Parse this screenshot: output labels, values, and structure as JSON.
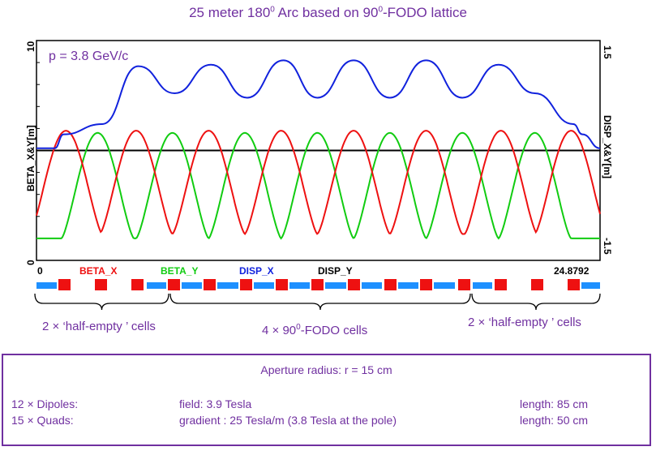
{
  "title_main": "25 meter 180",
  "title_sup": "0",
  "title_rest": " Arc based on 90",
  "title_sup2": "0",
  "title_end": "-FODO lattice",
  "chart_data": {
    "type": "line",
    "annotation": "p = 3.8 GeV/c",
    "ylabel_left": "BETA_X&Y[m]",
    "ylabel_right": "DISP_X&Y[m]",
    "left_ticks": [
      "0",
      "10"
    ],
    "right_ticks": [
      "-1.5",
      "1.5"
    ],
    "x_start_label": "0",
    "x_end_label": "24.8792",
    "xlim": [
      0,
      24.8792
    ],
    "ylim_left": [
      0,
      10
    ],
    "ylim_right": [
      -1.5,
      1.5
    ],
    "legend": [
      {
        "name": "BETA_X",
        "color": "#ee1111"
      },
      {
        "name": "BETA_Y",
        "color": "#11cc11"
      },
      {
        "name": "DISP_X",
        "color": "#1122dd"
      },
      {
        "name": "DISP_Y",
        "color": "#000000"
      }
    ],
    "series": [
      {
        "name": "BETA_X",
        "peaks_x": [
          1.3,
          4.4,
          7.6,
          10.8,
          14.0,
          17.2,
          20.5,
          23.6
        ],
        "peak": 5.9,
        "min": 1.2
      },
      {
        "name": "BETA_Y",
        "peaks_x": [
          2.7,
          6.0,
          9.2,
          12.4,
          15.6,
          18.8,
          22.0
        ],
        "peak": 5.8,
        "min": 1.0
      },
      {
        "name": "DISP_X",
        "x": [
          0,
          0.8,
          1.2,
          2.9,
          4.5,
          6.1,
          7.7,
          9.3,
          10.9,
          12.4,
          14.0,
          15.6,
          17.2,
          18.8,
          20.4,
          22.0,
          23.7,
          24.1,
          24.88
        ],
        "y": [
          0.03,
          0.03,
          0.22,
          0.36,
          1.15,
          0.78,
          1.17,
          0.72,
          1.23,
          0.72,
          1.23,
          0.72,
          1.23,
          0.72,
          1.17,
          0.78,
          0.36,
          0.22,
          0.03
        ]
      },
      {
        "name": "DISP_Y",
        "x": [
          0,
          24.88
        ],
        "y": [
          0,
          0
        ]
      }
    ]
  },
  "lattice": {
    "quad_color": "#1e90ff",
    "dipole_color": "#ee1111",
    "dipoles_label": "12 × Dipoles:",
    "quads_label": "15 × Quads:"
  },
  "cells": {
    "left_count": "2 ×",
    "left_text": " ‘half-empty ’ cells",
    "mid_count": "4 ×",
    "mid_num": "  90",
    "mid_sup": "0",
    "mid_text": "-FODO cells",
    "right_count": "2 ×",
    "right_text": " ‘half-empty ’ cells"
  },
  "info": {
    "aperture": "Aperture radius: r = 15 cm",
    "dipoles": "12 × Dipoles:",
    "dipole_field": "field: 3.9 Tesla",
    "dipole_length": "length: 85 cm",
    "quads": "15 × Quads:",
    "quad_gradient": "gradient : 25 Tesla/m (3.8 Tesla at the pole)",
    "quad_length": "length: 50 cm"
  }
}
